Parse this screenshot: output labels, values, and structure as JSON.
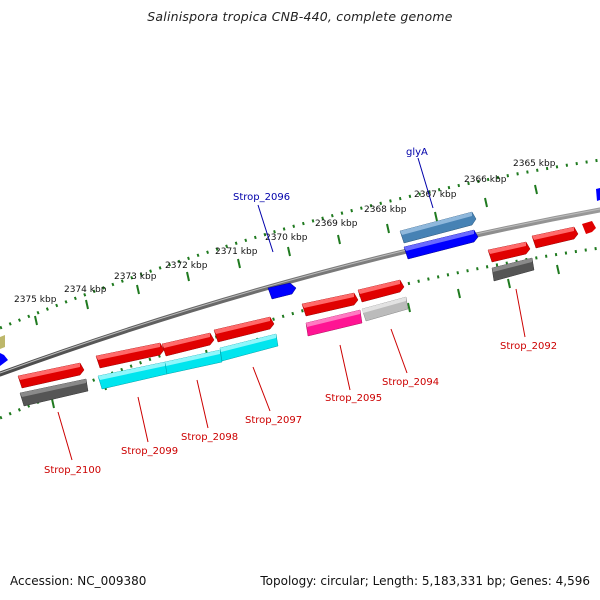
{
  "title": "Salinispora tropica CNB-440, complete genome",
  "footer": {
    "accession": "Accession: NC_009380",
    "summary": "Topology: circular; Length: 5,183,331 bp; Genes: 4,596"
  },
  "scale_labels": [
    "2375 kbp",
    "2374 kbp",
    "2373 kbp",
    "2372 kbp",
    "2371 kbp",
    "2370 kbp",
    "2369 kbp",
    "2368 kbp",
    "2367 kbp",
    "2366 kbp",
    "2365 kbp"
  ],
  "colors": {
    "red": "#ff0000",
    "dark_gray": "#555555",
    "cyan": "#00e5ee",
    "blue": "#0000ff",
    "steel_blue": "#4682b4",
    "magenta": "#ff1493",
    "light_gray": "#bbbbbb",
    "olive": "#bdb76b",
    "label_red": "#cc0000",
    "label_blue": "#0000aa",
    "tick_green": "#1f7a1f"
  },
  "genes": {
    "top": [
      {
        "name": "Strop_2096",
        "color": "blue"
      },
      {
        "name": "glyA",
        "color": "steel_blue"
      }
    ],
    "bottom": [
      {
        "name": "Strop_2100",
        "color": "dark_gray"
      },
      {
        "name": "Strop_2099",
        "color": "cyan"
      },
      {
        "name": "Strop_2098",
        "color": "cyan"
      },
      {
        "name": "Strop_2097",
        "color": "cyan"
      },
      {
        "name": "Strop_2095",
        "color": "magenta"
      },
      {
        "name": "Strop_2094",
        "color": "light_gray"
      },
      {
        "name": "Strop_2092",
        "color": "dark_gray"
      }
    ]
  }
}
